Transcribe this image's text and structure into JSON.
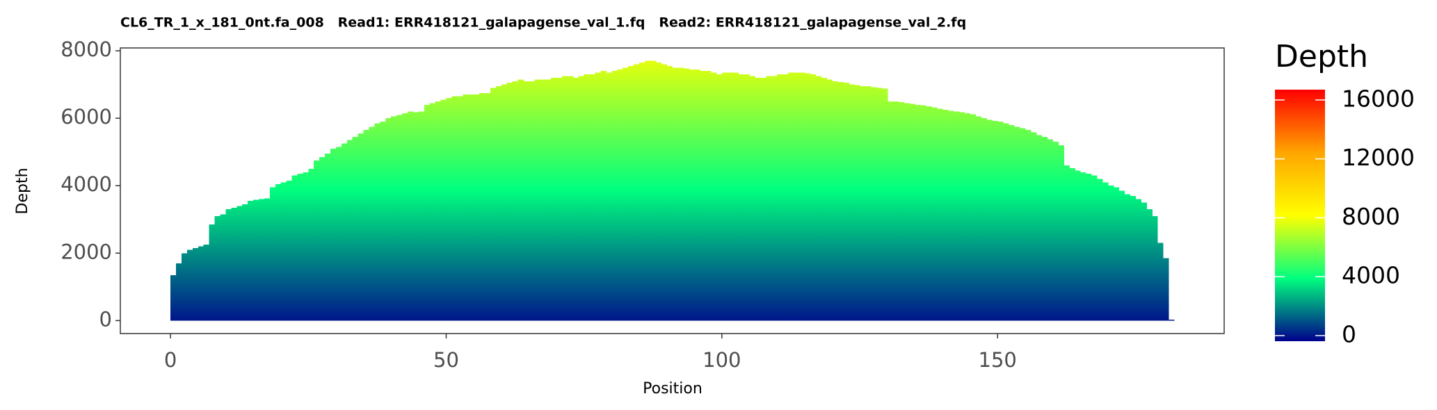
{
  "chart_data": {
    "type": "bar",
    "title": "CL6_TR_1_x_181_0nt.fa_008   Read1: ERR418121_galapagense_val_1.fq   Read2: ERR418121_galapagense_val_2.fq",
    "x_label": "Position",
    "y_label": "Depth",
    "x": [
      0,
      1,
      2,
      3,
      4,
      5,
      6,
      7,
      8,
      9,
      10,
      11,
      12,
      13,
      14,
      15,
      16,
      17,
      18,
      19,
      20,
      21,
      22,
      23,
      24,
      25,
      26,
      27,
      28,
      29,
      30,
      31,
      32,
      33,
      34,
      35,
      36,
      37,
      38,
      39,
      40,
      41,
      42,
      43,
      44,
      45,
      46,
      47,
      48,
      49,
      50,
      51,
      52,
      53,
      54,
      55,
      56,
      57,
      58,
      59,
      60,
      61,
      62,
      63,
      64,
      65,
      66,
      67,
      68,
      69,
      70,
      71,
      72,
      73,
      74,
      75,
      76,
      77,
      78,
      79,
      80,
      81,
      82,
      83,
      84,
      85,
      86,
      87,
      88,
      89,
      90,
      91,
      92,
      93,
      94,
      95,
      96,
      97,
      98,
      99,
      100,
      101,
      102,
      103,
      104,
      105,
      106,
      107,
      108,
      109,
      110,
      111,
      112,
      113,
      114,
      115,
      116,
      117,
      118,
      119,
      120,
      121,
      122,
      123,
      124,
      125,
      126,
      127,
      128,
      129,
      130,
      131,
      132,
      133,
      134,
      135,
      136,
      137,
      138,
      139,
      140,
      141,
      142,
      143,
      144,
      145,
      146,
      147,
      148,
      149,
      150,
      151,
      152,
      153,
      154,
      155,
      156,
      157,
      158,
      159,
      160,
      161,
      162,
      163,
      164,
      165,
      166,
      167,
      168,
      169,
      170,
      171,
      172,
      173,
      174,
      175,
      176,
      177,
      178,
      179,
      180,
      181
    ],
    "values": [
      1350,
      1700,
      2000,
      2100,
      2150,
      2200,
      2250,
      2850,
      3100,
      3150,
      3300,
      3350,
      3400,
      3450,
      3550,
      3580,
      3600,
      3620,
      3950,
      4050,
      4100,
      4150,
      4300,
      4350,
      4400,
      4500,
      4750,
      4850,
      4950,
      5100,
      5150,
      5250,
      5350,
      5450,
      5550,
      5650,
      5750,
      5850,
      5900,
      6000,
      6050,
      6100,
      6150,
      6200,
      6180,
      6200,
      6400,
      6450,
      6500,
      6550,
      6600,
      6650,
      6650,
      6700,
      6700,
      6700,
      6750,
      6750,
      6900,
      6950,
      7000,
      7050,
      7100,
      7150,
      7100,
      7100,
      7150,
      7150,
      7150,
      7200,
      7200,
      7250,
      7250,
      7200,
      7250,
      7300,
      7300,
      7350,
      7400,
      7350,
      7400,
      7450,
      7500,
      7550,
      7600,
      7650,
      7700,
      7700,
      7650,
      7600,
      7550,
      7500,
      7500,
      7480,
      7450,
      7450,
      7400,
      7400,
      7350,
      7300,
      7350,
      7350,
      7350,
      7300,
      7300,
      7250,
      7200,
      7200,
      7250,
      7250,
      7300,
      7300,
      7350,
      7350,
      7350,
      7330,
      7300,
      7250,
      7200,
      7150,
      7100,
      7080,
      7050,
      7000,
      6980,
      6950,
      6950,
      6920,
      6900,
      6880,
      6500,
      6500,
      6480,
      6450,
      6430,
      6400,
      6380,
      6350,
      6320,
      6280,
      6250,
      6220,
      6200,
      6180,
      6150,
      6120,
      6050,
      6000,
      5950,
      5920,
      5900,
      5850,
      5800,
      5750,
      5700,
      5650,
      5580,
      5500,
      5450,
      5380,
      5300,
      5200,
      4600,
      4520,
      4450,
      4400,
      4350,
      4300,
      4200,
      4100,
      4000,
      3950,
      3850,
      3750,
      3700,
      3600,
      3500,
      3300,
      3100,
      2300,
      1850,
      30
    ],
    "xlim": [
      -9.1,
      191.1
    ],
    "xticks": [
      0,
      50,
      100,
      150
    ],
    "ylim": [
      -385,
      8085
    ],
    "yticks": [
      0,
      2000,
      4000,
      6000,
      8000
    ],
    "legend": {
      "title": "Depth",
      "colors": [
        "#00008b",
        "#00ff7f",
        "#ffff00",
        "#ffa500",
        "#ff0000"
      ],
      "lim": [
        -380,
        16700
      ],
      "ticks": [
        0,
        4000,
        8000,
        12000,
        16000
      ]
    }
  }
}
